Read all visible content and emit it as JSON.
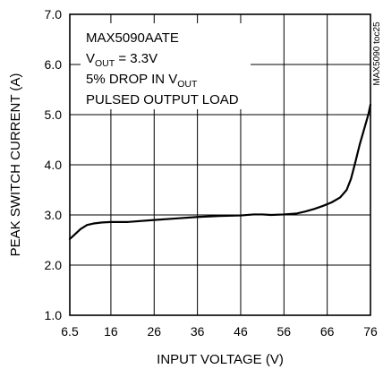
{
  "chart_data": {
    "type": "line",
    "title": "",
    "xlabel": "INPUT VOLTAGE (V)",
    "ylabel": "PEAK SWITCH CURRENT (A)",
    "xlim": [
      6.5,
      76
    ],
    "ylim": [
      1.0,
      7.0
    ],
    "x_ticks": [
      "6.5",
      "16",
      "26",
      "36",
      "46",
      "56",
      "66",
      "76"
    ],
    "y_ticks": [
      "1.0",
      "2.0",
      "3.0",
      "4.0",
      "5.0",
      "6.0",
      "7.0"
    ],
    "grid": true,
    "legend": "none",
    "line_color": "#000000",
    "annotations": {
      "part": "MAX5090AATE",
      "vout_prefix": "V",
      "vout_sub": "OUT",
      "vout_suffix": " = 3.3V",
      "drop_prefix": "5% DROP IN V",
      "drop_sub": "OUT",
      "load": "PULSED OUTPUT LOAD",
      "code": "MAX5090 toc25"
    },
    "series": [
      {
        "x": [
          6.5,
          7.5,
          9,
          10.5,
          12,
          14,
          16,
          20,
          26,
          31,
          36,
          41,
          46,
          49,
          51,
          53,
          56,
          59,
          61,
          63,
          65,
          67,
          69,
          70.5,
          71.5,
          72.5,
          73.5,
          74.5,
          75.5,
          76
        ],
        "y": [
          2.52,
          2.6,
          2.72,
          2.8,
          2.83,
          2.85,
          2.86,
          2.86,
          2.9,
          2.93,
          2.96,
          2.98,
          2.99,
          3.01,
          3.01,
          3.0,
          3.01,
          3.03,
          3.07,
          3.12,
          3.18,
          3.25,
          3.35,
          3.5,
          3.72,
          4.05,
          4.4,
          4.7,
          5.0,
          5.2
        ]
      }
    ]
  }
}
